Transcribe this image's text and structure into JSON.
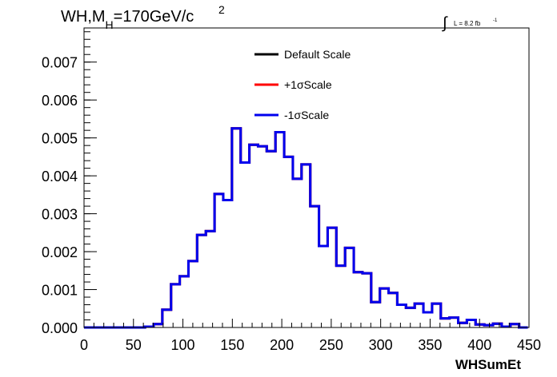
{
  "chart_data": {
    "type": "line",
    "step": true,
    "title_parts": {
      "main": "WH,M",
      "sub": "H",
      "rest": "=170GeV/c",
      "sup": "2"
    },
    "lumi_parts": {
      "integral": "∫",
      "text": "L = 8.2 fb",
      "sup": "-1"
    },
    "xlabel": "WHSumEt",
    "ylabel": "",
    "xlim": [
      0,
      450
    ],
    "ylim": [
      0,
      0.0079
    ],
    "x_ticks": [
      0,
      50,
      100,
      150,
      200,
      250,
      300,
      350,
      400,
      450
    ],
    "x_tick_labels": [
      "0",
      "50",
      "100",
      "150",
      "200",
      "250",
      "300",
      "350",
      "400",
      "450"
    ],
    "y_ticks": [
      0,
      0.001,
      0.002,
      0.003,
      0.004,
      0.005,
      0.006,
      0.007
    ],
    "y_tick_labels": [
      "0.000",
      "0.001",
      "0.002",
      "0.003",
      "0.004",
      "0.005",
      "0.006",
      "0.007"
    ],
    "grid": false,
    "legend_position": "top-center",
    "bin_edges": [
      0,
      8.8,
      17.6,
      26.4,
      35.2,
      44,
      52.8,
      61.6,
      70.4,
      79.2,
      88,
      96.8,
      105.6,
      114.4,
      123.2,
      132,
      140.8,
      149.6,
      158.4,
      167.2,
      176,
      184.8,
      193.6,
      202.4,
      211.2,
      220,
      228.8,
      237.6,
      246.4,
      255.2,
      264,
      272.8,
      281.6,
      290.4,
      299.2,
      308,
      316.8,
      325.6,
      334.4,
      343.2,
      352,
      360.8,
      369.6,
      378.4,
      387.2,
      396,
      404.8,
      413.6,
      422.4,
      431.2,
      440,
      448.8
    ],
    "series": [
      {
        "name": "Default Scale",
        "color": "#000000",
        "values": [
          0,
          0,
          0,
          0,
          0,
          0,
          0,
          2e-05,
          9e-05,
          0.00047,
          0.00114,
          0.00135,
          0.00175,
          0.00244,
          0.00254,
          0.00352,
          0.00336,
          0.00525,
          0.00435,
          0.00482,
          0.00478,
          0.00465,
          0.00515,
          0.0045,
          0.00392,
          0.0043,
          0.0032,
          0.00215,
          0.00263,
          0.00163,
          0.0021,
          0.00146,
          0.00143,
          0.00067,
          0.00103,
          0.00091,
          0.0006,
          0.00052,
          0.00063,
          0.0004,
          0.00063,
          0.00024,
          0.00026,
          0.00012,
          0.0002,
          8e-05,
          6e-05,
          0.0001,
          2e-05,
          9e-05,
          0
        ]
      },
      {
        "name": "+1σScale",
        "color": "#ff0000",
        "values": [
          0,
          0,
          0,
          0,
          0,
          0,
          0,
          2e-05,
          9e-05,
          0.00047,
          0.00114,
          0.00135,
          0.00175,
          0.00244,
          0.00254,
          0.00352,
          0.00336,
          0.00525,
          0.00435,
          0.00482,
          0.00478,
          0.00465,
          0.00515,
          0.0045,
          0.00392,
          0.0043,
          0.0032,
          0.00215,
          0.00263,
          0.00163,
          0.0021,
          0.00146,
          0.00143,
          0.00067,
          0.00103,
          0.00091,
          0.0006,
          0.00052,
          0.00063,
          0.0004,
          0.00063,
          0.00024,
          0.00026,
          0.00012,
          0.0002,
          8e-05,
          6e-05,
          0.0001,
          2e-05,
          9e-05,
          0
        ]
      },
      {
        "name": "-1σScale",
        "color": "#0000ee",
        "values": [
          0,
          0,
          0,
          0,
          0,
          0,
          0,
          2e-05,
          9e-05,
          0.00047,
          0.00114,
          0.00135,
          0.00175,
          0.00244,
          0.00254,
          0.00352,
          0.00336,
          0.00525,
          0.00435,
          0.00482,
          0.00478,
          0.00465,
          0.00515,
          0.0045,
          0.00392,
          0.0043,
          0.0032,
          0.00215,
          0.00263,
          0.00163,
          0.0021,
          0.00146,
          0.00143,
          0.00067,
          0.00103,
          0.00091,
          0.0006,
          0.00052,
          0.00063,
          0.0004,
          0.00063,
          0.00024,
          0.00026,
          0.00012,
          0.0002,
          8e-05,
          6e-05,
          0.0001,
          2e-05,
          9e-05,
          0
        ]
      }
    ]
  }
}
